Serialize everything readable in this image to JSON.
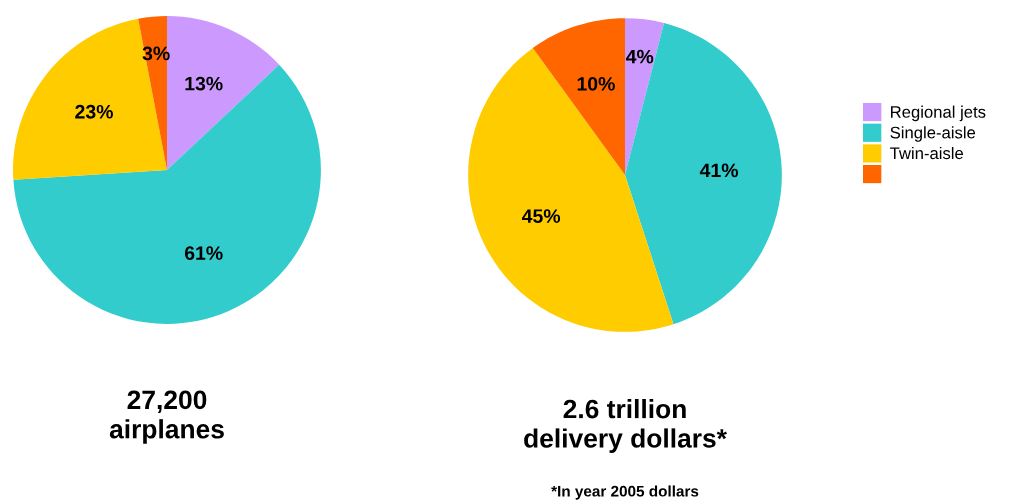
{
  "chart_data": [
    {
      "type": "pie",
      "title": "27,200\nairplanes",
      "categories": [
        null,
        null,
        null,
        null
      ],
      "values": [
        13,
        61,
        23,
        3
      ],
      "value_labels": [
        "13%",
        "61%",
        "23%",
        "3%"
      ],
      "colors": [
        "#cc99ff",
        "#33cccc",
        "#ffcc00",
        "#ff6600"
      ]
    },
    {
      "type": "pie",
      "title": "2.6 trillion\ndelivery dollars*",
      "categories": [
        "Regional jets",
        "Single-aisle",
        "Twin-aisle",
        null
      ],
      "values": [
        4,
        41,
        45,
        10
      ],
      "value_labels": [
        "4%",
        "41%",
        "45%",
        "10%"
      ],
      "colors": [
        "#cc99ff",
        "#33cccc",
        "#ffcc00",
        "#ff6600"
      ],
      "legend": "right",
      "annotations": [
        "*In year 2005 dollars"
      ]
    }
  ]
}
